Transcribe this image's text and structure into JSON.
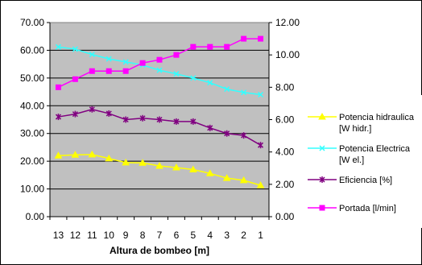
{
  "chart_data": {
    "type": "line",
    "xlabel": "Altura de bombeo [m]",
    "categories": [
      "13",
      "12",
      "11",
      "10",
      "9",
      "8",
      "7",
      "6",
      "5",
      "4",
      "3",
      "2",
      "1"
    ],
    "y_left": {
      "range": [
        0,
        70
      ],
      "ticks": [
        "0.00",
        "10.00",
        "20.00",
        "30.00",
        "40.00",
        "50.00",
        "60.00",
        "70.00"
      ]
    },
    "y_right": {
      "range": [
        0,
        12
      ],
      "ticks": [
        "0.00",
        "2.00",
        "4.00",
        "6.00",
        "8.00",
        "10.00",
        "12.00"
      ]
    },
    "plot_background": "#c0c0c0",
    "grid": {
      "horizontal": true,
      "vertical": false
    },
    "legend_position": "right",
    "series": [
      {
        "name_lines": [
          "Potencia hidraulica",
          "[W hidr.]"
        ],
        "axis": "left",
        "color": "#ffff00",
        "marker": "triangle",
        "values": [
          22.0,
          22.3,
          22.4,
          21.0,
          19.5,
          19.4,
          18.3,
          17.7,
          17.0,
          15.6,
          13.9,
          13.1,
          11.3
        ]
      },
      {
        "name_lines": [
          "Potencia Electrica",
          "[W el.]"
        ],
        "axis": "left",
        "color": "#33ffff",
        "marker": "x",
        "values": [
          61.2,
          60.4,
          58.5,
          56.9,
          55.8,
          54.7,
          52.8,
          51.5,
          50.0,
          48.3,
          46.0,
          44.8,
          44.0
        ]
      },
      {
        "name_lines": [
          "Eficiencia [%]"
        ],
        "axis": "left",
        "color": "#800080",
        "marker": "star",
        "values": [
          36.0,
          37.0,
          38.7,
          37.2,
          35.0,
          35.5,
          35.0,
          34.3,
          34.3,
          32.0,
          30.0,
          29.3,
          25.8
        ]
      },
      {
        "name_lines": [
          "Portada [l/min]"
        ],
        "axis": "right",
        "color": "#ff00ff",
        "marker": "square",
        "values": [
          8.0,
          8.5,
          9.0,
          9.0,
          9.0,
          9.5,
          9.7,
          10.0,
          10.5,
          10.5,
          10.5,
          11.0,
          11.0
        ]
      }
    ]
  }
}
